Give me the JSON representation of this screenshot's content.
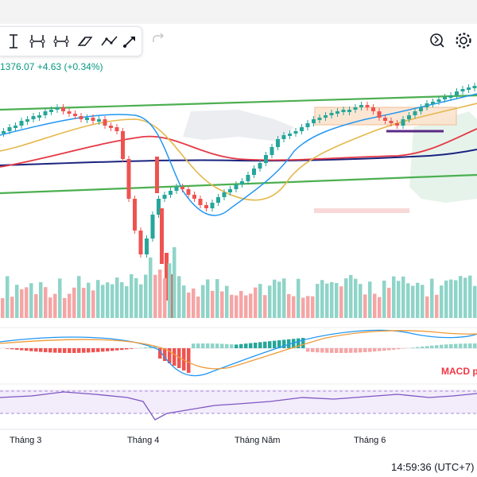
{
  "toolbar": {
    "tools": [
      "text-cursor-icon",
      "trend-line-tool-icon",
      "horizontal-ray-icon",
      "brush-pattern-icon",
      "path-icon",
      "arrow-pencil-icon"
    ],
    "undo_icon": "redo-arrow-icon",
    "right_tools": [
      "zoom-refresh-icon",
      "settings-gear-icon"
    ]
  },
  "legend": {
    "price": "1376.07",
    "change": "+4.63",
    "change_pct": "(+0.34%)"
  },
  "macd_label": "MACD p",
  "time_axis": {
    "labels": [
      "Tháng 3",
      "Tháng 4",
      "Tháng Năm",
      "Tháng 6"
    ],
    "clock": "14:59:36 (UTC+7)"
  },
  "colors": {
    "up": "#26a69a",
    "down": "#ef5350",
    "volume_up": "#8fd4c8",
    "volume_down": "#f6a5a5",
    "channel": "#4caf50",
    "ma_fast": "#2196f3",
    "ma_mid": "#e5b84b",
    "ma_slow_red": "#e53945",
    "ma_slow_navy": "#1a237e",
    "rsi": "#7e57c2"
  },
  "chart_data": {
    "type": "candlestick",
    "x_axis_labels": [
      "Tháng 3",
      "Tháng 4",
      "Tháng Năm",
      "Tháng 6"
    ],
    "last_price": 1376.07,
    "change": 4.63,
    "change_percent": 0.34,
    "indicators": [
      "moving averages",
      "volume",
      "MACD",
      "RSI"
    ]
  }
}
